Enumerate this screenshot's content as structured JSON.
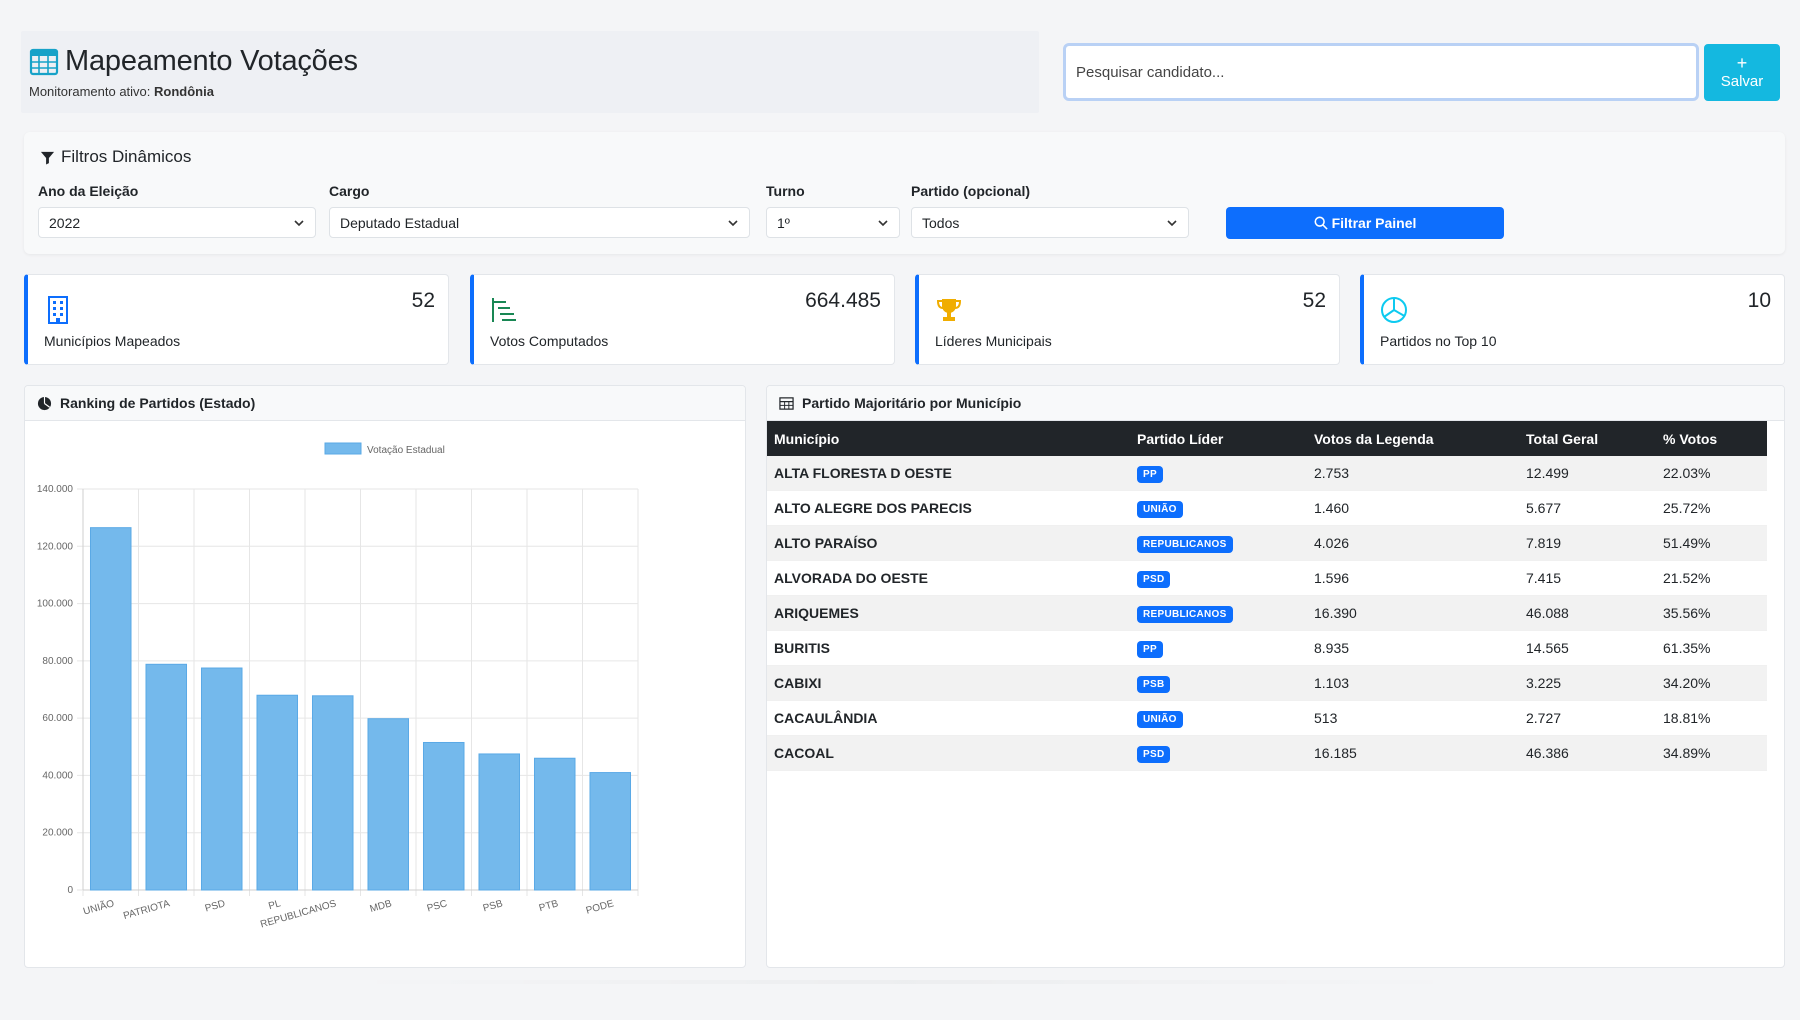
{
  "header": {
    "title": "Mapeamento Votações",
    "subtitle_prefix": "Monitoramento ativo:",
    "subtitle_state": "Rondônia"
  },
  "search": {
    "placeholder": "Pesquisar candidato...",
    "value": ""
  },
  "save_button": {
    "icon": "+",
    "label": "Salvar"
  },
  "filters": {
    "title": "Filtros Dinâmicos",
    "year": {
      "label": "Ano da Eleição",
      "value": "2022"
    },
    "cargo": {
      "label": "Cargo",
      "value": "Deputado Estadual"
    },
    "turno": {
      "label": "Turno",
      "value": "1º"
    },
    "partido": {
      "label": "Partido (opcional)",
      "value": "Todos"
    },
    "button_label": "Filtrar Painel"
  },
  "stats": [
    {
      "value": "52",
      "label": "Municípios Mapeados",
      "icon": "building-icon",
      "color": "#0d6efd"
    },
    {
      "value": "664.485",
      "label": "Votos Computados",
      "icon": "list-nested-icon",
      "color": "#198754"
    },
    {
      "value": "52",
      "label": "Líderes Municipais",
      "icon": "trophy-icon",
      "color": "#ffc107"
    },
    {
      "value": "10",
      "label": "Partidos no Top 10",
      "icon": "pie-chart-icon",
      "color": "#0dcaf0"
    }
  ],
  "ranking_panel": {
    "title": "Ranking de Partidos (Estado)"
  },
  "chart_data": {
    "type": "bar",
    "title": "",
    "categories": [
      "UNIÃO",
      "PATRIOTA",
      "PSD",
      "PL",
      "REPUBLICANOS",
      "MDB",
      "PSC",
      "PSB",
      "PTB",
      "PODE"
    ],
    "series": [
      {
        "name": "Votação Estadual",
        "values": [
          126500,
          78800,
          77500,
          68000,
          67800,
          59800,
          51500,
          47500,
          46000,
          41000
        ]
      }
    ],
    "xlabel": "",
    "ylabel": "",
    "ylim": [
      0,
      140000
    ],
    "yticks": [
      "0",
      "20.000",
      "40.000",
      "60.000",
      "80.000",
      "100.000",
      "120.000",
      "140.000"
    ],
    "grid": true,
    "legend_position": "top",
    "bar_color": "#74b9ec"
  },
  "table_panel": {
    "title": "Partido Majoritário por Município",
    "columns": [
      "Município",
      "Partido Líder",
      "Votos da Legenda",
      "Total Geral",
      "% Votos"
    ],
    "rows": [
      [
        "ALTA FLORESTA D OESTE",
        "PP",
        "2.753",
        "12.499",
        "22.03%"
      ],
      [
        "ALTO ALEGRE DOS PARECIS",
        "UNIÃO",
        "1.460",
        "5.677",
        "25.72%"
      ],
      [
        "ALTO PARAÍSO",
        "REPUBLICANOS",
        "4.026",
        "7.819",
        "51.49%"
      ],
      [
        "ALVORADA DO OESTE",
        "PSD",
        "1.596",
        "7.415",
        "21.52%"
      ],
      [
        "ARIQUEMES",
        "REPUBLICANOS",
        "16.390",
        "46.088",
        "35.56%"
      ],
      [
        "BURITIS",
        "PP",
        "8.935",
        "14.565",
        "61.35%"
      ],
      [
        "CABIXI",
        "PSB",
        "1.103",
        "3.225",
        "34.20%"
      ],
      [
        "CACAULÂNDIA",
        "UNIÃO",
        "513",
        "2.727",
        "18.81%"
      ],
      [
        "CACOAL",
        "PSD",
        "16.185",
        "46.386",
        "34.89%"
      ]
    ]
  }
}
